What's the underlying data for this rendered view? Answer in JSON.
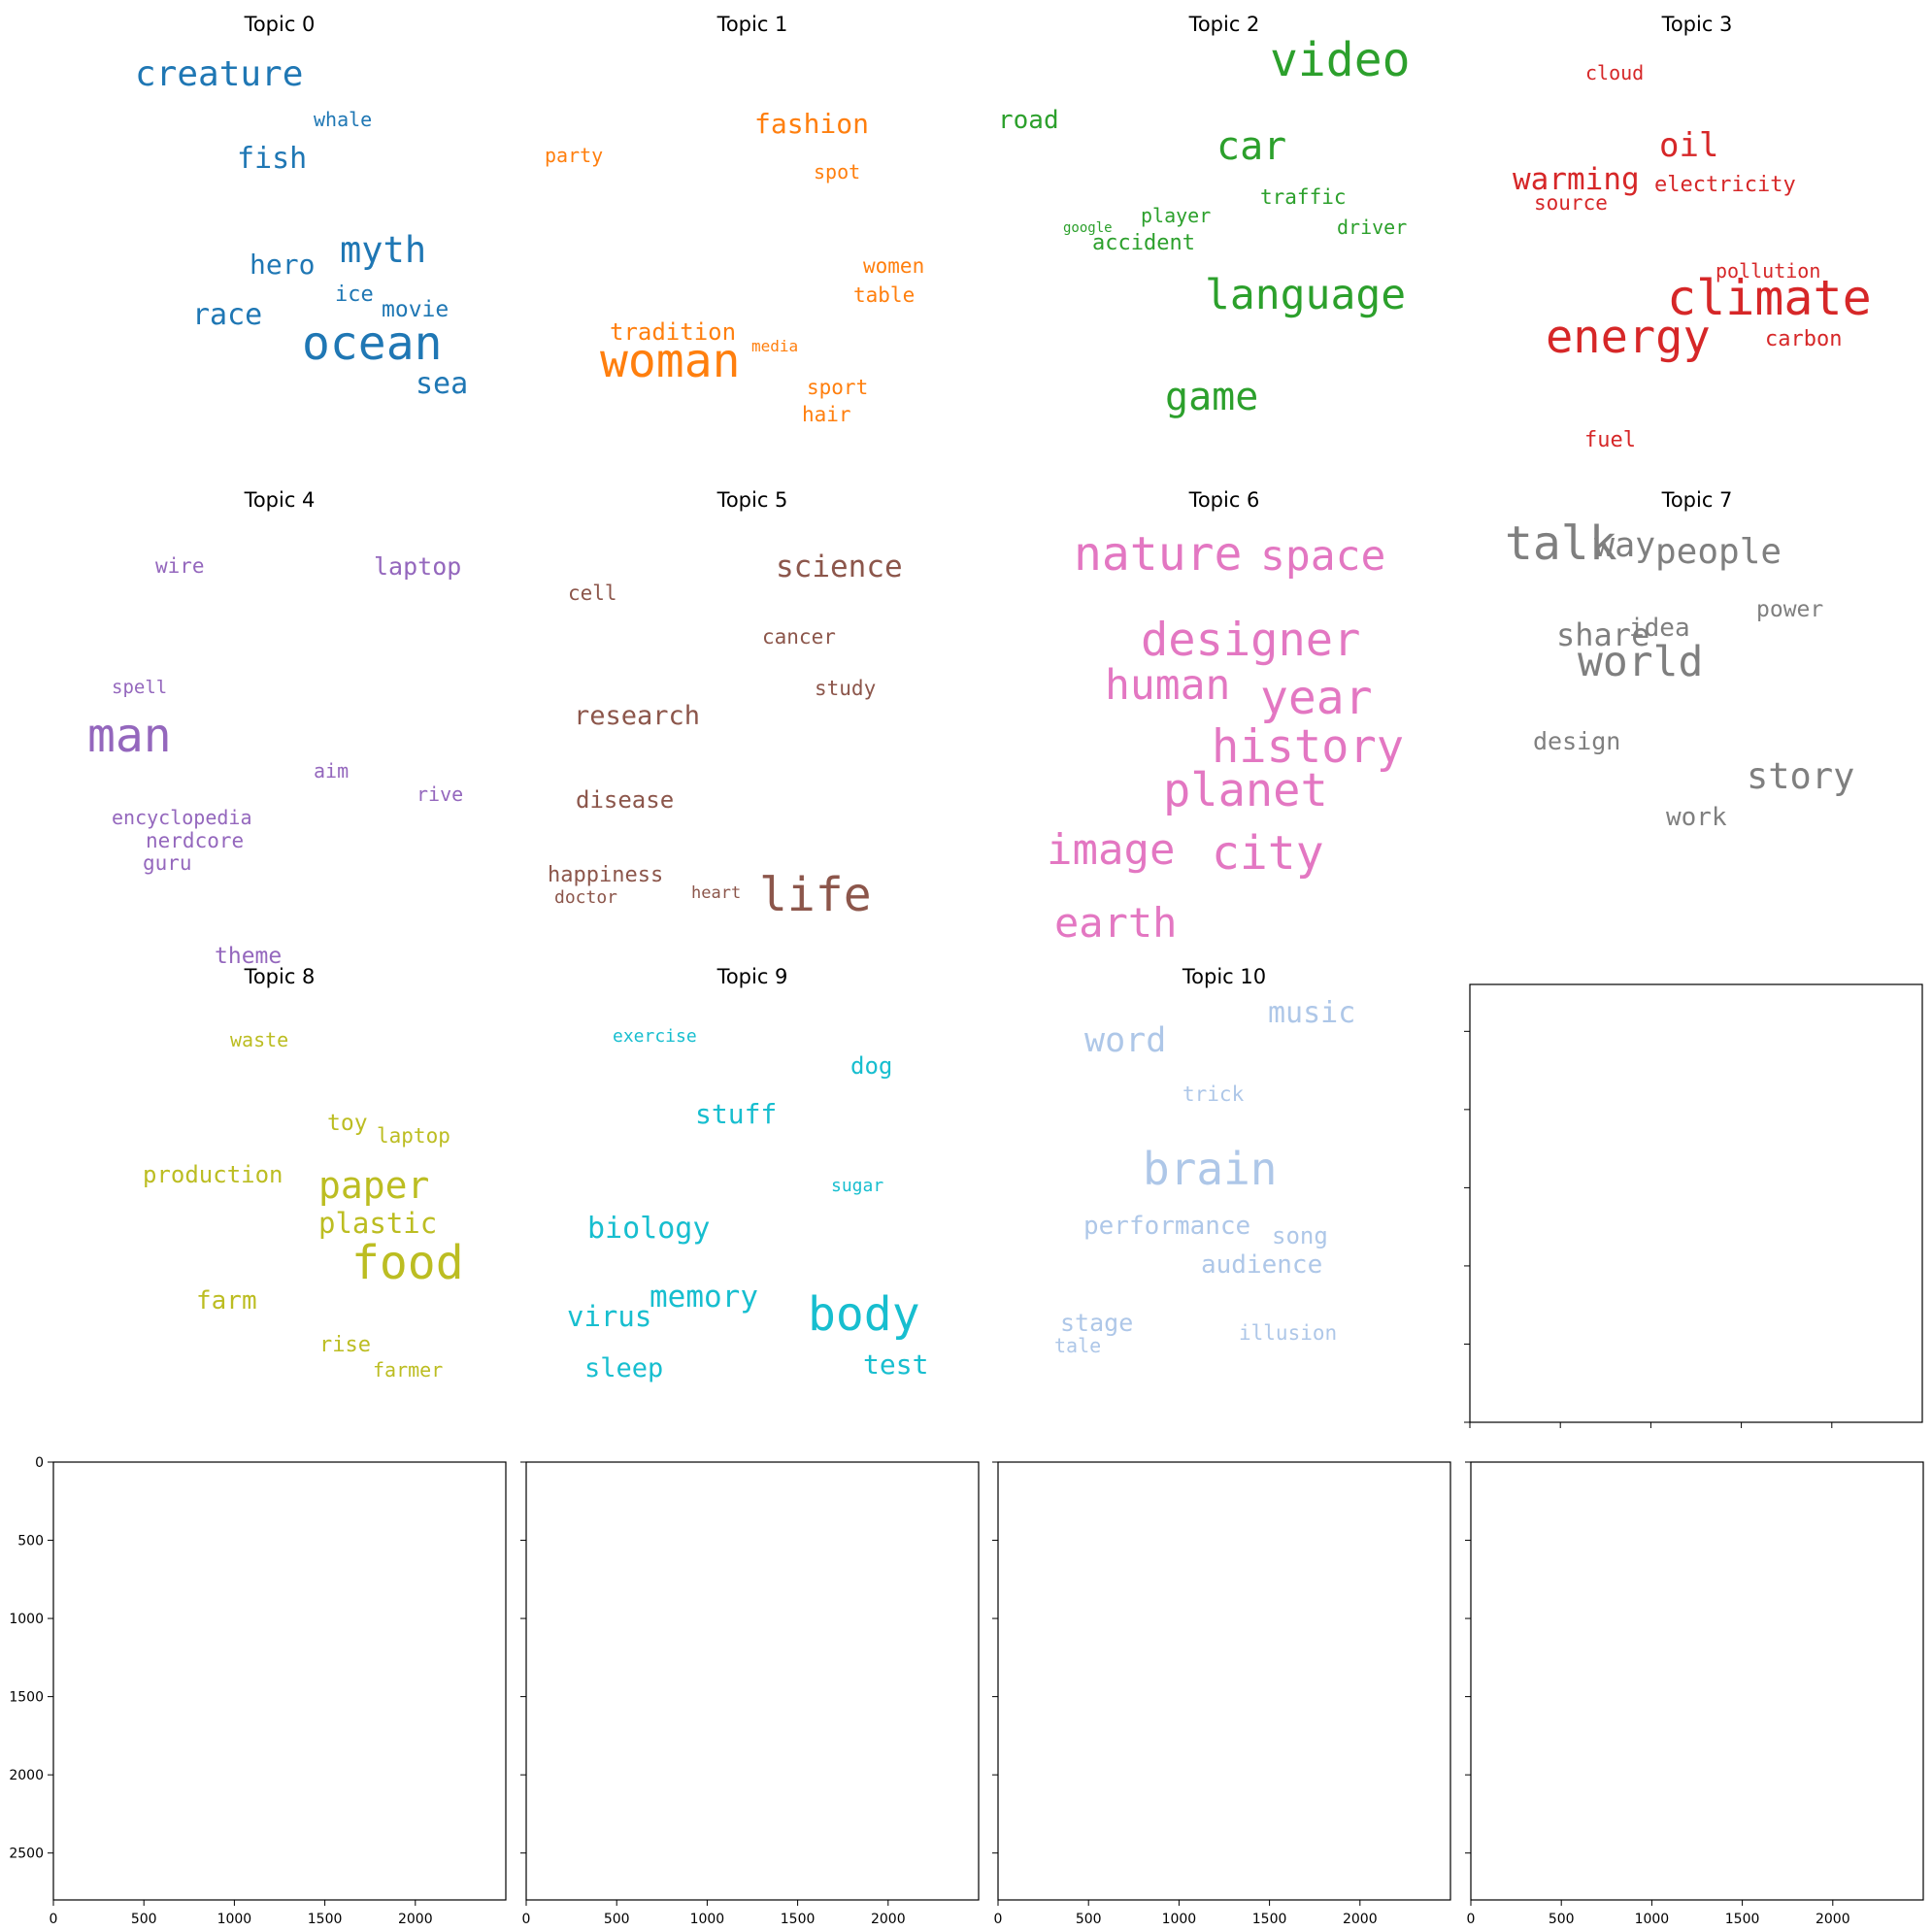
{
  "chart_data": [
    {
      "type": "wordcloud",
      "title": "Topic 0",
      "color": "#1f77b4",
      "words": [
        {
          "text": "creature",
          "weight": 0.6
        },
        {
          "text": "whale",
          "weight": 0.3
        },
        {
          "text": "fish",
          "weight": 0.55
        },
        {
          "text": "myth",
          "weight": 0.62
        },
        {
          "text": "hero",
          "weight": 0.5
        },
        {
          "text": "ice",
          "weight": 0.38
        },
        {
          "text": "movie",
          "weight": 0.4
        },
        {
          "text": "race",
          "weight": 0.52
        },
        {
          "text": "ocean",
          "weight": 1.0
        },
        {
          "text": "sea",
          "weight": 0.52
        }
      ]
    },
    {
      "type": "wordcloud",
      "title": "Topic 1",
      "color": "#ff7f0e",
      "words": [
        {
          "text": "fashion",
          "weight": 0.5
        },
        {
          "text": "party",
          "weight": 0.3
        },
        {
          "text": "spot",
          "weight": 0.35
        },
        {
          "text": "women",
          "weight": 0.37
        },
        {
          "text": "table",
          "weight": 0.37
        },
        {
          "text": "tradition",
          "weight": 0.45
        },
        {
          "text": "media",
          "weight": 0.25
        },
        {
          "text": "woman",
          "weight": 1.0
        },
        {
          "text": "sport",
          "weight": 0.37
        },
        {
          "text": "hair",
          "weight": 0.37
        }
      ]
    },
    {
      "type": "wordcloud",
      "title": "Topic 2",
      "color": "#2ca02c",
      "words": [
        {
          "text": "video",
          "weight": 1.0
        },
        {
          "text": "road",
          "weight": 0.45
        },
        {
          "text": "car",
          "weight": 0.75
        },
        {
          "text": "traffic",
          "weight": 0.38
        },
        {
          "text": "google",
          "weight": 0.2
        },
        {
          "text": "player",
          "weight": 0.38
        },
        {
          "text": "driver",
          "weight": 0.38
        },
        {
          "text": "accident",
          "weight": 0.4
        },
        {
          "text": "language",
          "weight": 0.9
        },
        {
          "text": "game",
          "weight": 0.8
        }
      ]
    },
    {
      "type": "wordcloud",
      "title": "Topic 3",
      "color": "#d62728",
      "words": [
        {
          "text": "cloud",
          "weight": 0.35
        },
        {
          "text": "oil",
          "weight": 0.55
        },
        {
          "text": "warming",
          "weight": 0.55
        },
        {
          "text": "electricity",
          "weight": 0.4
        },
        {
          "text": "source",
          "weight": 0.4
        },
        {
          "text": "pollution",
          "weight": 0.35
        },
        {
          "text": "climate",
          "weight": 1.0
        },
        {
          "text": "energy",
          "weight": 0.95
        },
        {
          "text": "carbon",
          "weight": 0.4
        },
        {
          "text": "fuel",
          "weight": 0.4
        }
      ]
    },
    {
      "type": "wordcloud",
      "title": "Topic 4",
      "color": "#9467bd",
      "words": [
        {
          "text": "wire",
          "weight": 0.35
        },
        {
          "text": "laptop",
          "weight": 0.45
        },
        {
          "text": "spell",
          "weight": 0.3
        },
        {
          "text": "man",
          "weight": 1.0
        },
        {
          "text": "aim",
          "weight": 0.35
        },
        {
          "text": "rive",
          "weight": 0.35
        },
        {
          "text": "encyclopedia",
          "weight": 0.37
        },
        {
          "text": "nerdcore",
          "weight": 0.37
        },
        {
          "text": "guru",
          "weight": 0.37
        },
        {
          "text": "theme",
          "weight": 0.42
        }
      ]
    },
    {
      "type": "wordcloud",
      "title": "Topic 5",
      "color": "#8c564b",
      "words": [
        {
          "text": "science",
          "weight": 0.6
        },
        {
          "text": "cell",
          "weight": 0.38
        },
        {
          "text": "cancer",
          "weight": 0.38
        },
        {
          "text": "study",
          "weight": 0.4
        },
        {
          "text": "research",
          "weight": 0.55
        },
        {
          "text": "disease",
          "weight": 0.48
        },
        {
          "text": "happiness",
          "weight": 0.45
        },
        {
          "text": "heart",
          "weight": 0.35
        },
        {
          "text": "doctor",
          "weight": 0.37
        },
        {
          "text": "life",
          "weight": 1.0
        }
      ]
    },
    {
      "type": "wordcloud",
      "title": "Topic 6",
      "color": "#e377c2",
      "words": [
        {
          "text": "nature",
          "weight": 1.0
        },
        {
          "text": "space",
          "weight": 0.9
        },
        {
          "text": "designer",
          "weight": 0.95
        },
        {
          "text": "human",
          "weight": 0.9
        },
        {
          "text": "year",
          "weight": 0.9
        },
        {
          "text": "history",
          "weight": 0.95
        },
        {
          "text": "planet",
          "weight": 0.95
        },
        {
          "text": "image",
          "weight": 0.95
        },
        {
          "text": "city",
          "weight": 0.95
        },
        {
          "text": "earth",
          "weight": 0.9
        }
      ]
    },
    {
      "type": "wordcloud",
      "title": "Topic 7",
      "color": "#7f7f7f",
      "words": [
        {
          "text": "talk",
          "weight": 1.0
        },
        {
          "text": "way",
          "weight": 0.7
        },
        {
          "text": "people",
          "weight": 0.75
        },
        {
          "text": "share",
          "weight": 0.65
        },
        {
          "text": "idea",
          "weight": 0.55
        },
        {
          "text": "world",
          "weight": 0.85
        },
        {
          "text": "power",
          "weight": 0.45
        },
        {
          "text": "design",
          "weight": 0.5
        },
        {
          "text": "story",
          "weight": 0.75
        },
        {
          "text": "work",
          "weight": 0.5
        }
      ]
    },
    {
      "type": "wordcloud",
      "title": "Topic 8",
      "color": "#bcbd22",
      "words": [
        {
          "text": "waste",
          "weight": 0.38
        },
        {
          "text": "toy",
          "weight": 0.4
        },
        {
          "text": "laptop",
          "weight": 0.4
        },
        {
          "text": "production",
          "weight": 0.45
        },
        {
          "text": "paper",
          "weight": 0.7
        },
        {
          "text": "plastic",
          "weight": 0.55
        },
        {
          "text": "food",
          "weight": 1.0
        },
        {
          "text": "farm",
          "weight": 0.48
        },
        {
          "text": "rise",
          "weight": 0.42
        },
        {
          "text": "farmer",
          "weight": 0.37
        }
      ]
    },
    {
      "type": "wordcloud",
      "title": "Topic 9",
      "color": "#17becf",
      "words": [
        {
          "text": "exercise",
          "weight": 0.35
        },
        {
          "text": "dog",
          "weight": 0.45
        },
        {
          "text": "stuff",
          "weight": 0.55
        },
        {
          "text": "sugar",
          "weight": 0.32
        },
        {
          "text": "biology",
          "weight": 0.6
        },
        {
          "text": "memory",
          "weight": 0.7
        },
        {
          "text": "virus",
          "weight": 0.55
        },
        {
          "text": "body",
          "weight": 1.0
        },
        {
          "text": "sleep",
          "weight": 0.55
        },
        {
          "text": "test",
          "weight": 0.6
        }
      ]
    },
    {
      "type": "wordcloud",
      "title": "Topic 10",
      "color": "#aec7e8",
      "words": [
        {
          "text": "word",
          "weight": 0.6
        },
        {
          "text": "music",
          "weight": 0.75
        },
        {
          "text": "trick",
          "weight": 0.45
        },
        {
          "text": "brain",
          "weight": 1.0
        },
        {
          "text": "performance",
          "weight": 0.6
        },
        {
          "text": "song",
          "weight": 0.5
        },
        {
          "text": "audience",
          "weight": 0.55
        },
        {
          "text": "stage",
          "weight": 0.5
        },
        {
          "text": "tale",
          "weight": 0.4
        },
        {
          "text": "illusion",
          "weight": 0.45
        }
      ]
    },
    {
      "type": "empty-axes",
      "xlim": [
        0,
        2500
      ],
      "ylim": [
        0,
        2800
      ],
      "xticks": [],
      "yticks": []
    },
    {
      "type": "empty-axes",
      "xlim": [
        0,
        2500
      ],
      "ylim": [
        2800,
        0
      ],
      "xticks": [
        "0",
        "500",
        "1000",
        "1500",
        "2000"
      ],
      "yticks": [
        "0",
        "500",
        "1000",
        "1500",
        "2000",
        "2500"
      ]
    },
    {
      "type": "empty-axes",
      "xlim": [
        0,
        2500
      ],
      "ylim": [
        2800,
        0
      ],
      "xticks": [
        "0",
        "500",
        "1000",
        "1500",
        "2000"
      ],
      "yticks": []
    },
    {
      "type": "empty-axes",
      "xlim": [
        0,
        2500
      ],
      "ylim": [
        2800,
        0
      ],
      "xticks": [
        "0",
        "500",
        "1000",
        "1500",
        "2000"
      ],
      "yticks": []
    },
    {
      "type": "empty-axes",
      "xlim": [
        0,
        2500
      ],
      "ylim": [
        2800,
        0
      ],
      "xticks": [
        "0",
        "500",
        "1000",
        "1500",
        "2000"
      ],
      "yticks": []
    }
  ]
}
